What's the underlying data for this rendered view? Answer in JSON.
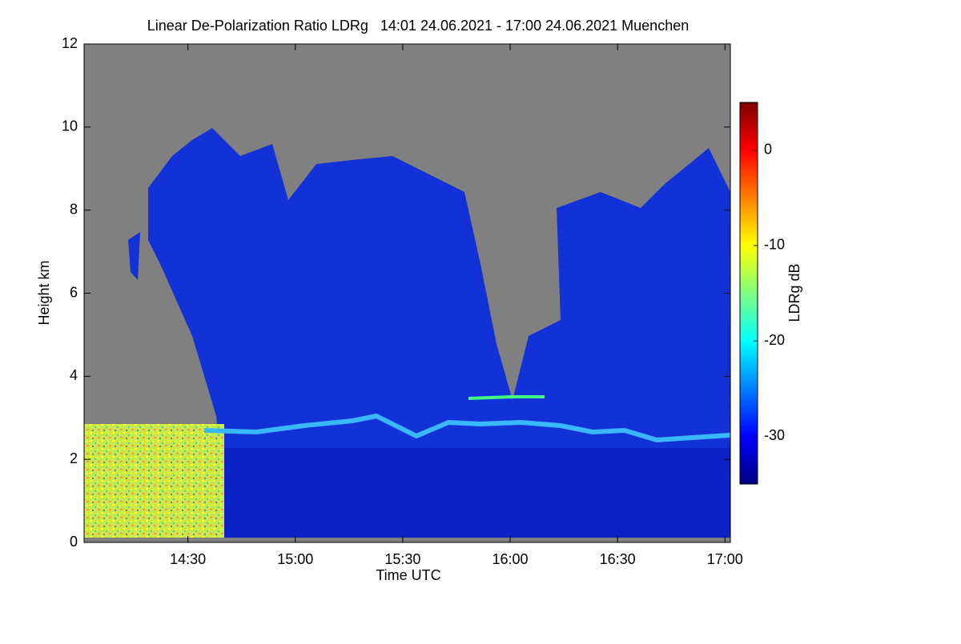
{
  "chart_data": {
    "type": "heatmap",
    "title": "Linear De-Polarization Ratio LDRg   14:01 24.06.2021 - 17:00 24.06.2021 Muenchen",
    "xlabel": "Time UTC",
    "ylabel": "Height km",
    "xlim": [
      14.0167,
      17.025
    ],
    "xticks": [
      {
        "value": 14.5,
        "label": "14:30"
      },
      {
        "value": 15.0,
        "label": "15:00"
      },
      {
        "value": 15.5,
        "label": "15:30"
      },
      {
        "value": 16.0,
        "label": "16:00"
      },
      {
        "value": 16.5,
        "label": "16:30"
      },
      {
        "value": 17.0,
        "label": "17:00"
      }
    ],
    "ylim": [
      0,
      12
    ],
    "yticks": [
      0,
      2,
      4,
      6,
      8,
      10,
      12
    ],
    "colorbar_label": "LDRg dB",
    "clim": [
      -35,
      5
    ],
    "cticks": [
      0,
      -10,
      -20,
      -30
    ],
    "colormap": [
      "#00007f",
      "#0000ff",
      "#007fff",
      "#00ffff",
      "#7fff7f",
      "#ffff00",
      "#ff7f00",
      "#ff0000",
      "#7f0000"
    ]
  }
}
